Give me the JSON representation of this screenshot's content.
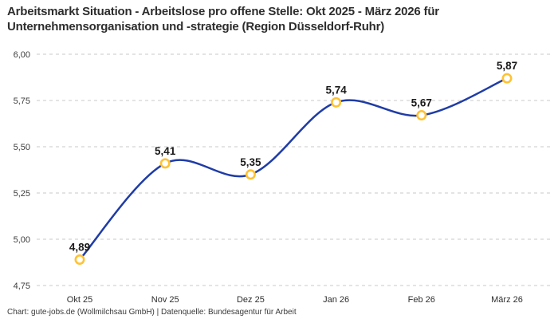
{
  "title": {
    "line1": "Arbeitsmarkt Situation - Arbeitslose pro offene Stelle: Okt 2025 - März 2026 für",
    "line2": "Unternehmensorganisation und -strategie (Region Düsseldorf-Ruhr)"
  },
  "footer": "Chart: gute-jobs.de (Wollmilchsau GmbH) | Datenquelle: Bundesagentur für Arbeit",
  "chart_data": {
    "type": "line",
    "title": "Arbeitsmarkt Situation - Arbeitslose pro offene Stelle: Okt 2025 - März 2026 für Unternehmensorganisation und -strategie (Region Düsseldorf-Ruhr)",
    "categories": [
      "Okt 25",
      "Nov 25",
      "Dez 25",
      "Jan 26",
      "Feb 26",
      "März 26"
    ],
    "values": [
      4.89,
      5.41,
      5.35,
      5.74,
      5.67,
      5.87
    ],
    "value_labels": [
      "4,89",
      "5,41",
      "5,35",
      "5,74",
      "5,67",
      "5,87"
    ],
    "series_name": "Arbeitslose pro offene Stelle",
    "xlabel": "",
    "ylabel": "",
    "ylim": [
      4.75,
      6.0
    ],
    "y_tick_values": [
      6.0,
      5.75,
      5.5,
      5.25,
      5.0,
      4.75
    ],
    "y_tick_labels": [
      "6,00",
      "5,75",
      "5,50",
      "5,25",
      "5,00",
      "4,75"
    ],
    "grid": "horizontal-dashed",
    "legend": "none",
    "line_color": "#1f3ca6",
    "marker_ring_color": "#ffc233",
    "marker_fill_color": "#ffffff",
    "grid_color": "#c9c9c9",
    "tick_label_color": "#3c3c3c",
    "data_label_color": "#1a1a1a"
  }
}
